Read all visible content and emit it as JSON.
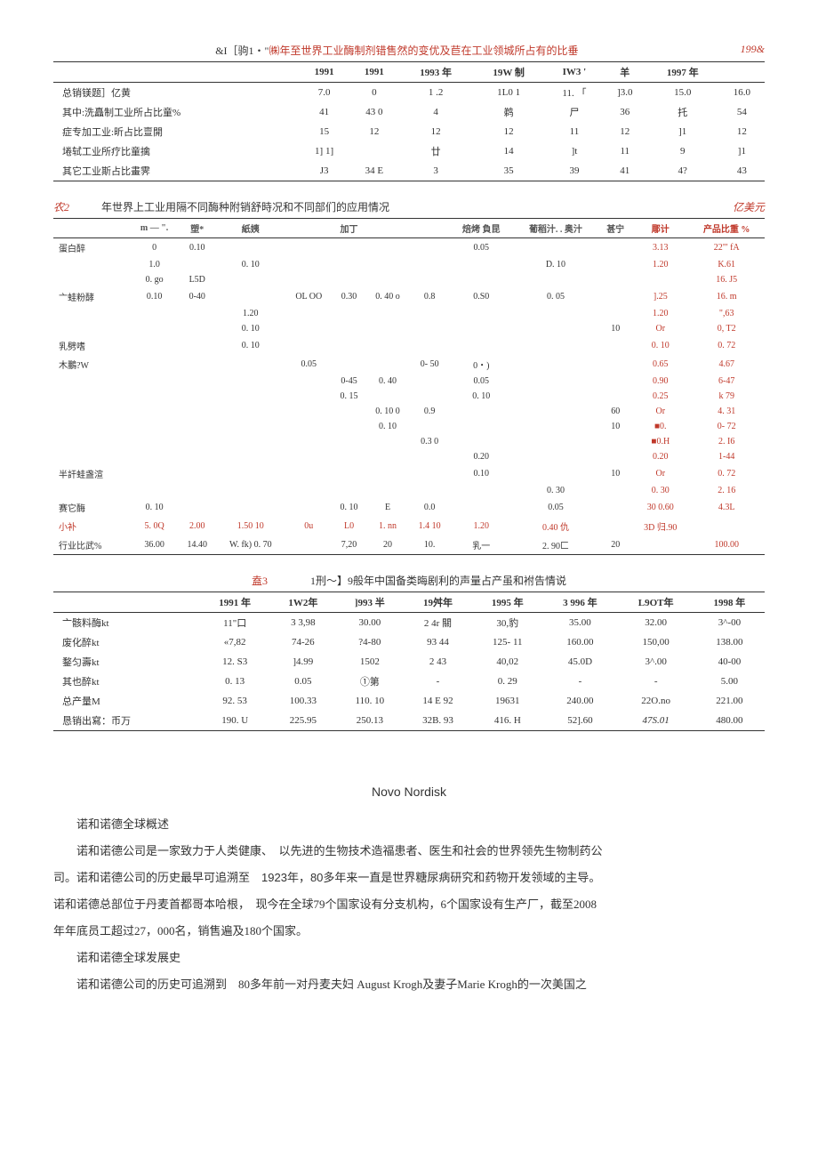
{
  "t1": {
    "title_pre": "&I［驹1・\"",
    "title_red": "㈱年至世界工业酶制剂错售然的变优及苣在工业领城所占有的比垂",
    "years": [
      "1991",
      "1991",
      "1993 年",
      "19W 制",
      "IW3 '",
      "羊",
      "1997 年"
    ],
    "corner": "199&",
    "rows": [
      [
        "总销镁题］亿黄",
        "7.0",
        "0",
        "1 .2",
        "1L0 1",
        "11. 「",
        "]3.0",
        "15.0",
        "16.0"
      ],
      [
        "其中:洗矗制工业所占比童%",
        "41",
        "43 0",
        "4",
        "鹈",
        "尸",
        "36",
        "托",
        "54"
      ],
      [
        "症专加工业:昕占比亶開",
        "15",
        "12",
        "12",
        "12",
        "11",
        "12",
        "]1",
        "12"
      ],
      [
        "埢轼工业所疗比童擒",
        "1] 1]",
        "",
        "廿",
        "14",
        "]t",
        "11",
        "9",
        "]1"
      ],
      [
        "其它工业斯占比畫霁",
        "J3",
        "34 E",
        "3",
        "35",
        "39",
        "41",
        "4?",
        "43"
      ]
    ]
  },
  "t2": {
    "title_left": "农2",
    "title_mid": "年世界上工业用隔不同酶种附销舒時况和不同部们的应用情况",
    "unit": "亿美元",
    "head": [
      "",
      "m — \".",
      "塑*",
      "紙姨",
      "",
      "加丁",
      "",
      "",
      "焙烤 負昆",
      "葡稻汁. . 奥汁",
      "甚宁",
      "郮计",
      "产品比重 %"
    ],
    "rows": [
      [
        "蛋白醉",
        "0",
        "0.10",
        "",
        "",
        "",
        "",
        "",
        "0.05",
        "",
        "",
        "3.13",
        "22\"' fA"
      ],
      [
        "",
        "1.0",
        "",
        "0. 10",
        "",
        "",
        "",
        "",
        "",
        "D. 10",
        "",
        "1.20",
        "K.61"
      ],
      [
        "",
        "0. go",
        "L5D",
        "",
        "",
        "",
        "",
        "",
        "",
        "",
        "",
        "",
        "16. J5"
      ],
      [
        "亠蛙粉酵",
        "0.10",
        "0-40",
        "",
        "OL OO",
        "0.30",
        "0. 40 o",
        "0.8",
        "0.S0",
        "0. 05",
        "",
        "].25",
        "16. m"
      ],
      [
        "",
        "",
        "",
        "1.20",
        "",
        "",
        "",
        "",
        "",
        "",
        "",
        "1.20",
        "\",63"
      ],
      [
        "",
        "",
        "",
        "0. 10",
        "",
        "",
        "",
        "",
        "",
        "",
        "10",
        "Or",
        "0, T2"
      ],
      [
        "乳劈嗜",
        "",
        "",
        "0. 10",
        "",
        "",
        "",
        "",
        "",
        "",
        "",
        "0. 10",
        "0. 72"
      ],
      [
        "木鵬?W",
        "",
        "",
        "",
        "0.05",
        "",
        "",
        "0- 50",
        "0・)",
        "",
        "",
        "0.65",
        "4.67"
      ],
      [
        "",
        "",
        "",
        "",
        "",
        "0-45",
        "0. 40",
        "",
        "0.05",
        "",
        "",
        "0.90",
        "6-47"
      ],
      [
        "",
        "",
        "",
        "",
        "",
        "0. 15",
        "",
        "",
        "0. 10",
        "",
        "",
        "0.25",
        "k 79"
      ],
      [
        "",
        "",
        "",
        "",
        "",
        "",
        "0. 10 0",
        "0.9",
        "",
        "",
        "60",
        "Or",
        "4. 31"
      ],
      [
        "",
        "",
        "",
        "",
        "",
        "",
        "0. 10",
        "",
        "",
        "",
        "10",
        "■0.",
        "0- 72"
      ],
      [
        "",
        "",
        "",
        "",
        "",
        "",
        "",
        "0.3 0",
        "",
        "",
        "",
        "■0.H",
        "2. I6"
      ],
      [
        "",
        "",
        "",
        "",
        "",
        "",
        "",
        "",
        "0.20",
        "",
        "",
        "0.20",
        "1-44"
      ],
      [
        "半訐蛙盏渲",
        "",
        "",
        "",
        "",
        "",
        "",
        "",
        "0.10",
        "",
        "10",
        "Or",
        "0. 72"
      ],
      [
        "",
        "",
        "",
        "",
        "",
        "",
        "",
        "",
        "",
        "0. 30",
        "",
        "0. 30",
        "2. 16"
      ],
      [
        "赛它酶",
        "0. 10",
        "",
        "",
        "",
        "0. 10",
        "E",
        "0.0",
        "",
        "0.05",
        "",
        "30 0.60",
        "4.3L"
      ],
      [
        "小补",
        "5. 0Q",
        "2.00",
        "1.50 10",
        "0u",
        "L0",
        "1. nn",
        "1.4 10",
        "1.20",
        "0.40 仇",
        "",
        "3D 归.90",
        ""
      ],
      [
        "行业比武%",
        "36.00",
        "14.40",
        "W. fk) 0. 70",
        "",
        "7,20",
        "20",
        "10.",
        "乳一",
        "2. 90匚",
        "20",
        "",
        "100.00"
      ]
    ]
  },
  "t3": {
    "title_left": "盍3",
    "title_mid": "1刑～】9般年中国备类晦剧利的声量占产虽和袝告情说",
    "head": [
      "",
      "1991 年",
      "1W2年",
      "]993 半",
      "19舛年",
      "1995 年",
      "3 996 年",
      "L9OT年",
      "1998 年"
    ],
    "rows": [
      [
        "亠骸料酶kt",
        "11\"口",
        "3 3,98",
        "30.00",
        "2 4r 關",
        "30,豹",
        "35.00",
        "32.00",
        "3^-00"
      ],
      [
        "废化醉kt",
        "«7,82",
        "74-26",
        "?4-80",
        "93 44",
        "125- 11",
        "160.00",
        "150,00",
        "138.00"
      ],
      [
        "鍪匀壽kt",
        "12. S3",
        "]4.99",
        "1502",
        "2 43",
        "40,02",
        "45.0D",
        "3^.00",
        "40-00"
      ],
      [
        "其也醉kt",
        "0. 13",
        "0.05",
        "①第",
        "-",
        "0. 29",
        "-",
        "-",
        "5.00"
      ],
      [
        "总产量M",
        "92. 53",
        "100.33",
        "110. 10",
        "14 E 92",
        "19631",
        "240.00",
        "22O.no",
        "221.00"
      ],
      [
        "恳销出寫：币万",
        "190. U",
        "225.95",
        "250.13",
        "32B. 93",
        "416. H",
        "52].60",
        "47S.01",
        "480.00"
      ]
    ]
  },
  "nn": {
    "title": "Novo Nordisk",
    "p1": "诺和诺德全球概述",
    "p2a": "诺和诺德公司是一家致力于人类健康、",
    "p2b": "以先进的生物技术造福患者、医生和社会的世界领先生物制药公",
    "p3a": "司。诺和诺德公司的历史最早可追溯至",
    "p3b": "1923年，80多年来一直是世界糖尿病研究和药物开发领域的主导。",
    "p4a": "诺和诺德总部位于丹麦首都哥本哈根，",
    "p4b": "现今在全球79个国家设有分支机构，6个国家设有生产厂，截至2008",
    "p5": "年年底员工超过27，000名，销售遍及180个国家。",
    "p6": "诺和诺德全球发展史",
    "p7a": "诺和诺德公司的历史可追溯到",
    "p7b": "80多年前一对丹麦夫妇 August Krogh及妻子Marie Krogh的一次美国之"
  }
}
